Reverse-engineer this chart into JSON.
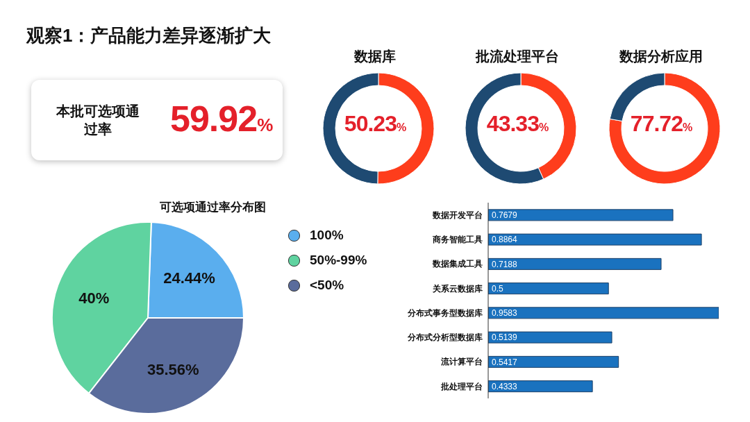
{
  "chart_data": [
    {
      "type": "other",
      "title": "观察1：产品能力差异逐渐扩大",
      "annotations": [
        "本批可选项通过率",
        "59.92%"
      ]
    },
    {
      "type": "donut",
      "title": "数据库",
      "categories": [
        null,
        null
      ],
      "values": [
        50.23,
        49.77
      ],
      "colors": [
        "#fe3d1c",
        "#1e4a72"
      ],
      "annotations": [
        "50.23%"
      ]
    },
    {
      "type": "donut",
      "title": "批流处理平台",
      "categories": [
        null,
        null
      ],
      "values": [
        43.33,
        56.67
      ],
      "colors": [
        "#fe3d1c",
        "#1e4a72"
      ],
      "annotations": [
        "43.33%"
      ]
    },
    {
      "type": "donut",
      "title": "数据分析应用",
      "categories": [
        null,
        null
      ],
      "values": [
        77.72,
        22.28
      ],
      "colors": [
        "#fe3d1c",
        "#1e4a72"
      ],
      "annotations": [
        "77.72%"
      ]
    },
    {
      "type": "pie",
      "title": "可选项通过率分布图",
      "categories": [
        "100%",
        "50%-99%",
        "<50%"
      ],
      "values": [
        24.44,
        40,
        35.56
      ],
      "colors": [
        "#5aaeee",
        "#5fd3a0",
        "#5a6c9c"
      ],
      "value_labels": [
        "24.44%",
        "40%",
        "35.56%"
      ],
      "legend": "top right"
    },
    {
      "type": "bar",
      "orientation": "horizontal",
      "categories": [
        "数据开发平台",
        "商务智能工具",
        "数据集成工具",
        "关系云数据库",
        "分布式事务型数据库",
        "分布式分析型数据库",
        "流计算平台",
        "批处理平台"
      ],
      "values": [
        0.7679,
        0.8864,
        0.7188,
        0.5,
        0.9583,
        0.5139,
        0.5417,
        0.4333
      ],
      "color": "#1a72bf",
      "data_labels": true,
      "tick_labels": "y"
    }
  ]
}
